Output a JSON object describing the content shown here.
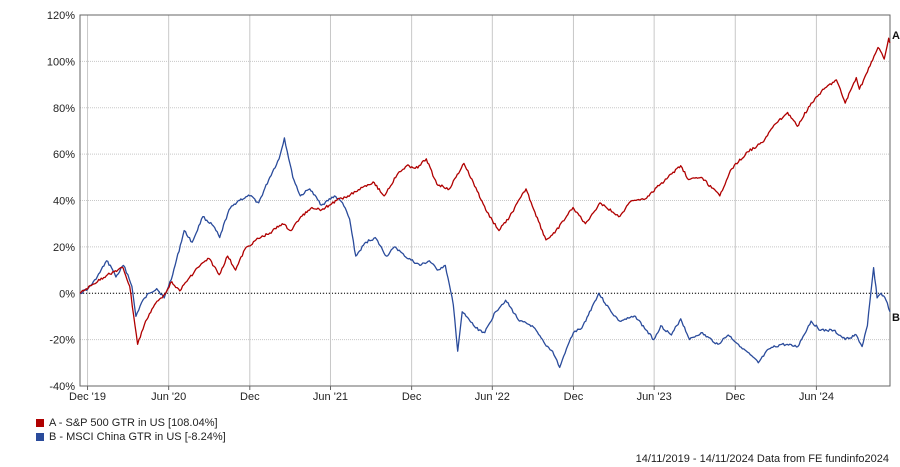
{
  "chart_data": {
    "type": "line",
    "title": "",
    "xlabel": "",
    "ylabel": "",
    "ylim": [
      -40,
      120
    ],
    "yticks": [
      -40,
      -20,
      0,
      20,
      40,
      60,
      80,
      100,
      120
    ],
    "ytick_labels": [
      "-40%",
      "-20%",
      "0%",
      "20%",
      "40%",
      "60%",
      "80%",
      "100%",
      "120%"
    ],
    "xlim": [
      "2019-11-14",
      "2024-11-14"
    ],
    "xticks": [
      {
        "date": "2019-12-01",
        "label": "Dec '19"
      },
      {
        "date": "2020-06-01",
        "label": "Jun '20"
      },
      {
        "date": "2020-12-01",
        "label": "Dec"
      },
      {
        "date": "2021-06-01",
        "label": "Jun '21"
      },
      {
        "date": "2021-12-01",
        "label": "Dec"
      },
      {
        "date": "2022-06-01",
        "label": "Jun '22"
      },
      {
        "date": "2022-12-01",
        "label": "Dec"
      },
      {
        "date": "2023-06-01",
        "label": "Jun '23"
      },
      {
        "date": "2023-12-01",
        "label": "Dec"
      },
      {
        "date": "2024-06-01",
        "label": "Jun '24"
      }
    ],
    "grid": true,
    "series": [
      {
        "name": "A - S&P 500 GTR in US [108.04%]",
        "marker": "A",
        "color": "#b00000",
        "points": [
          [
            "2019-11-14",
            0
          ],
          [
            "2019-12-15",
            4
          ],
          [
            "2020-01-15",
            8
          ],
          [
            "2020-02-19",
            11
          ],
          [
            "2020-03-05",
            3
          ],
          [
            "2020-03-23",
            -22
          ],
          [
            "2020-04-10",
            -12
          ],
          [
            "2020-04-30",
            -5
          ],
          [
            "2020-05-20",
            -1
          ],
          [
            "2020-06-08",
            5
          ],
          [
            "2020-06-26",
            1
          ],
          [
            "2020-07-15",
            6
          ],
          [
            "2020-08-05",
            11
          ],
          [
            "2020-08-31",
            15
          ],
          [
            "2020-09-23",
            8
          ],
          [
            "2020-10-12",
            16
          ],
          [
            "2020-10-30",
            10
          ],
          [
            "2020-11-20",
            19
          ],
          [
            "2020-12-15",
            23
          ],
          [
            "2021-01-15",
            26
          ],
          [
            "2021-02-12",
            30
          ],
          [
            "2021-03-04",
            27
          ],
          [
            "2021-03-26",
            33
          ],
          [
            "2021-04-20",
            37
          ],
          [
            "2021-05-12",
            36
          ],
          [
            "2021-06-15",
            40
          ],
          [
            "2021-07-10",
            42
          ],
          [
            "2021-08-15",
            46
          ],
          [
            "2021-09-05",
            48
          ],
          [
            "2021-09-30",
            42
          ],
          [
            "2021-10-29",
            51
          ],
          [
            "2021-11-20",
            55
          ],
          [
            "2021-12-15",
            54
          ],
          [
            "2022-01-03",
            58
          ],
          [
            "2022-01-27",
            47
          ],
          [
            "2022-02-24",
            45
          ],
          [
            "2022-03-29",
            56
          ],
          [
            "2022-04-28",
            44
          ],
          [
            "2022-05-20",
            35
          ],
          [
            "2022-06-16",
            27
          ],
          [
            "2022-07-10",
            33
          ],
          [
            "2022-08-16",
            45
          ],
          [
            "2022-09-05",
            35
          ],
          [
            "2022-09-30",
            23
          ],
          [
            "2022-10-20",
            26
          ],
          [
            "2022-11-30",
            37
          ],
          [
            "2022-12-28",
            30
          ],
          [
            "2023-01-30",
            39
          ],
          [
            "2023-02-28",
            35
          ],
          [
            "2023-03-13",
            33
          ],
          [
            "2023-04-12",
            40
          ],
          [
            "2023-05-15",
            41
          ],
          [
            "2023-06-15",
            47
          ],
          [
            "2023-07-31",
            55
          ],
          [
            "2023-08-18",
            49
          ],
          [
            "2023-09-15",
            50
          ],
          [
            "2023-10-27",
            42
          ],
          [
            "2023-11-20",
            53
          ],
          [
            "2023-12-29",
            61
          ],
          [
            "2024-01-31",
            65
          ],
          [
            "2024-02-29",
            73
          ],
          [
            "2024-03-28",
            78
          ],
          [
            "2024-04-19",
            72
          ],
          [
            "2024-05-20",
            82
          ],
          [
            "2024-06-18",
            88
          ],
          [
            "2024-07-16",
            92
          ],
          [
            "2024-08-05",
            82
          ],
          [
            "2024-08-30",
            93
          ],
          [
            "2024-09-06",
            88
          ],
          [
            "2024-09-30",
            98
          ],
          [
            "2024-10-18",
            106
          ],
          [
            "2024-11-01",
            101
          ],
          [
            "2024-11-11",
            110
          ],
          [
            "2024-11-14",
            108
          ]
        ]
      },
      {
        "name": "B - MSCI China GTR in US [-8.24%]",
        "marker": "B",
        "color": "#2a4b9b",
        "points": [
          [
            "2019-11-14",
            0
          ],
          [
            "2019-12-02",
            2
          ],
          [
            "2019-12-20",
            6
          ],
          [
            "2020-01-13",
            14
          ],
          [
            "2020-01-24",
            11
          ],
          [
            "2020-02-03",
            7
          ],
          [
            "2020-02-20",
            12
          ],
          [
            "2020-03-01",
            8
          ],
          [
            "2020-03-10",
            3
          ],
          [
            "2020-03-19",
            -10
          ],
          [
            "2020-04-01",
            -4
          ],
          [
            "2020-04-17",
            0
          ],
          [
            "2020-05-05",
            2
          ],
          [
            "2020-05-22",
            -2
          ],
          [
            "2020-06-10",
            8
          ],
          [
            "2020-07-06",
            27
          ],
          [
            "2020-07-24",
            22
          ],
          [
            "2020-08-17",
            33
          ],
          [
            "2020-09-10",
            29
          ],
          [
            "2020-09-24",
            24
          ],
          [
            "2020-10-15",
            36
          ],
          [
            "2020-11-05",
            40
          ],
          [
            "2020-12-01",
            42
          ],
          [
            "2020-12-21",
            39
          ],
          [
            "2021-01-15",
            50
          ],
          [
            "2021-02-05",
            58
          ],
          [
            "2021-02-17",
            67
          ],
          [
            "2021-03-08",
            50
          ],
          [
            "2021-03-25",
            42
          ],
          [
            "2021-04-15",
            45
          ],
          [
            "2021-05-12",
            38
          ],
          [
            "2021-06-10",
            42
          ],
          [
            "2021-06-28",
            39
          ],
          [
            "2021-07-14",
            32
          ],
          [
            "2021-07-28",
            16
          ],
          [
            "2021-08-20",
            22
          ],
          [
            "2021-09-10",
            24
          ],
          [
            "2021-10-05",
            16
          ],
          [
            "2021-10-25",
            20
          ],
          [
            "2021-11-15",
            16
          ],
          [
            "2021-12-20",
            12
          ],
          [
            "2022-01-10",
            14
          ],
          [
            "2022-01-28",
            10
          ],
          [
            "2022-02-15",
            12
          ],
          [
            "2022-03-05",
            -5
          ],
          [
            "2022-03-15",
            -25
          ],
          [
            "2022-03-25",
            -8
          ],
          [
            "2022-04-25",
            -15
          ],
          [
            "2022-05-15",
            -17
          ],
          [
            "2022-06-08",
            -8
          ],
          [
            "2022-07-01",
            -3
          ],
          [
            "2022-08-01",
            -12
          ],
          [
            "2022-08-30",
            -14
          ],
          [
            "2022-09-28",
            -22
          ],
          [
            "2022-10-15",
            -25
          ],
          [
            "2022-10-31",
            -32
          ],
          [
            "2022-11-15",
            -24
          ],
          [
            "2022-12-01",
            -17
          ],
          [
            "2022-12-20",
            -15
          ],
          [
            "2023-01-27",
            0
          ],
          [
            "2023-02-24",
            -8
          ],
          [
            "2023-03-15",
            -12
          ],
          [
            "2023-04-20",
            -10
          ],
          [
            "2023-05-31",
            -20
          ],
          [
            "2023-06-16",
            -14
          ],
          [
            "2023-07-10",
            -18
          ],
          [
            "2023-07-31",
            -11
          ],
          [
            "2023-08-20",
            -20
          ],
          [
            "2023-09-15",
            -17
          ],
          [
            "2023-10-23",
            -22
          ],
          [
            "2023-11-15",
            -18
          ],
          [
            "2023-12-20",
            -24
          ],
          [
            "2024-01-22",
            -30
          ],
          [
            "2024-02-15",
            -24
          ],
          [
            "2024-03-15",
            -22
          ],
          [
            "2024-04-20",
            -23
          ],
          [
            "2024-05-20",
            -12
          ],
          [
            "2024-06-10",
            -16
          ],
          [
            "2024-07-10",
            -16
          ],
          [
            "2024-08-05",
            -20
          ],
          [
            "2024-08-30",
            -18
          ],
          [
            "2024-09-12",
            -23
          ],
          [
            "2024-09-24",
            -14
          ],
          [
            "2024-10-08",
            11
          ],
          [
            "2024-10-16",
            -2
          ],
          [
            "2024-10-25",
            0
          ],
          [
            "2024-11-05",
            -3
          ],
          [
            "2024-11-14",
            -8
          ]
        ]
      }
    ],
    "legend_position": "bottom-left"
  },
  "legend": {
    "items": [
      {
        "label": "A - S&P 500 GTR in US [108.04%]",
        "color": "#b00000"
      },
      {
        "label": "B - MSCI China GTR in US [-8.24%]",
        "color": "#2a4b9b"
      }
    ]
  },
  "footer": {
    "text": "14/11/2019 - 14/11/2024 Data from FE fundinfo2024"
  }
}
